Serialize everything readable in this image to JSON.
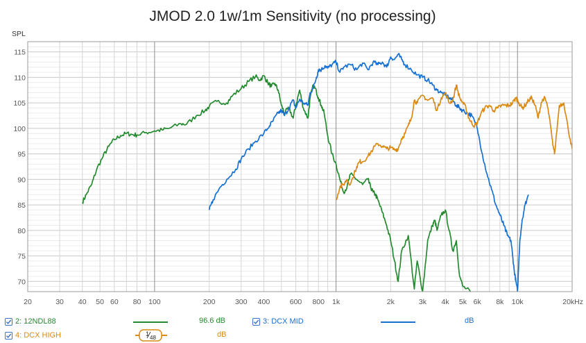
{
  "chart_data": {
    "type": "line",
    "title": "JMOD 2.0 1w/1m Sensitivity (no processing)",
    "ylabel": "SPL",
    "xlabel": "Hz",
    "xscale": "log",
    "xlim": [
      20,
      20000
    ],
    "ylim": [
      68,
      117
    ],
    "grid": true,
    "y_ticks": [
      "115",
      "110",
      "105",
      "100",
      "95",
      "90",
      "85",
      "80",
      "75",
      "70"
    ],
    "x_ticks": [
      "20",
      "30",
      "40",
      "50",
      "60",
      "80",
      "100",
      "200",
      "300",
      "400",
      "600",
      "800",
      "1k",
      "2k",
      "3k",
      "4k",
      "5k",
      "6k",
      "8k",
      "10k",
      "20kHz"
    ],
    "series": [
      {
        "name": "2: 12NDL88",
        "color": "#238a2f",
        "x": [
          40,
          42,
          45,
          48,
          52,
          56,
          60,
          65,
          70,
          75,
          80,
          90,
          100,
          110,
          120,
          140,
          150,
          170,
          190,
          200,
          220,
          250,
          270,
          300,
          330,
          360,
          380,
          400,
          420,
          440,
          460,
          480,
          500,
          520,
          550,
          580,
          600,
          630,
          660,
          700,
          720,
          750,
          780,
          800,
          830,
          860,
          900,
          950,
          1000,
          1050,
          1100,
          1150,
          1200,
          1300,
          1400,
          1500,
          1550,
          1600,
          1650,
          1700,
          1800,
          1900,
          2000,
          2100,
          2200,
          2300,
          2500,
          2700,
          2800,
          3000,
          3200,
          3400,
          3500,
          3600,
          3800,
          4000,
          4200,
          4400,
          4600,
          4800,
          5000,
          5500
        ],
        "values": [
          85.5,
          87,
          89,
          92,
          94.5,
          96.5,
          97.8,
          98.6,
          99,
          98.8,
          98.7,
          99.2,
          99.5,
          99.7,
          100,
          100.9,
          100.8,
          102.5,
          103.5,
          104.3,
          105.3,
          105,
          106.5,
          107.8,
          109.2,
          110.2,
          109.5,
          110.3,
          109,
          108.2,
          108.8,
          107.5,
          104.5,
          103,
          104,
          102,
          104.5,
          107.5,
          104,
          102,
          106,
          108.5,
          107.2,
          106,
          104.5,
          103,
          98.5,
          95,
          93,
          90,
          87.5,
          88.5,
          91,
          90,
          89,
          90,
          88.5,
          87.5,
          87,
          86,
          83.5,
          81,
          78,
          74,
          70,
          76,
          79,
          68.5,
          74,
          68,
          78,
          81,
          82,
          80,
          83,
          84,
          80,
          76,
          78,
          71,
          69,
          68
        ]
      },
      {
        "name": "3: DCX MID",
        "color": "#1670d2",
        "x": [
          200,
          210,
          230,
          250,
          280,
          300,
          330,
          360,
          400,
          430,
          450,
          480,
          500,
          520,
          550,
          580,
          600,
          630,
          660,
          700,
          720,
          750,
          780,
          800,
          830,
          870,
          900,
          950,
          1000,
          1050,
          1100,
          1200,
          1300,
          1400,
          1500,
          1600,
          1700,
          1800,
          1900,
          2000,
          2100,
          2200,
          2300,
          2400,
          2600,
          2800,
          3000,
          3200,
          3400,
          3600,
          3800,
          4000,
          4200,
          4400,
          4600,
          4800,
          5000,
          5300,
          5600,
          6000,
          6400,
          6800,
          7200,
          7600,
          8000,
          8400,
          8800,
          9200,
          9400,
          9600,
          9800,
          10000,
          10300,
          10600,
          11000,
          11500
        ],
        "values": [
          84,
          86,
          88.5,
          90,
          92,
          94,
          96,
          97.5,
          99,
          100.5,
          101.5,
          103,
          103.5,
          102.5,
          104,
          105.5,
          104,
          105.7,
          105,
          104.5,
          107,
          108,
          110,
          111.5,
          111.5,
          112.3,
          111.8,
          112.5,
          113,
          111,
          112,
          112.5,
          111.5,
          112.8,
          111.5,
          113,
          112.5,
          113,
          112,
          114,
          113.5,
          114.5,
          113.5,
          112.5,
          111.5,
          110.5,
          110,
          109.5,
          108.5,
          107.5,
          107,
          106.5,
          106,
          105.5,
          104.5,
          104,
          103.5,
          103,
          102.5,
          100,
          95,
          91,
          88,
          85,
          83,
          81,
          79,
          78,
          75,
          72,
          70,
          68,
          78,
          82,
          85,
          87
        ]
      },
      {
        "name": "4: DCX HIGH",
        "color": "#d98a14",
        "x": [
          1000,
          1050,
          1100,
          1150,
          1200,
          1300,
          1350,
          1400,
          1500,
          1600,
          1700,
          1800,
          1900,
          2000,
          2100,
          2200,
          2300,
          2400,
          2500,
          2600,
          2700,
          2800,
          3000,
          3200,
          3400,
          3600,
          3800,
          4000,
          4200,
          4400,
          4600,
          4800,
          5000,
          5200,
          5400,
          5600,
          5800,
          6000,
          6300,
          6600,
          7000,
          7400,
          7800,
          8200,
          8600,
          9000,
          9400,
          9800,
          10200,
          10600,
          11000,
          11500,
          12000,
          12500,
          13000,
          13500,
          14000,
          14500,
          15000,
          15500,
          16000,
          17000,
          18000,
          19000,
          20000
        ],
        "values": [
          86,
          88.5,
          89,
          90,
          89,
          92.5,
          93.5,
          93.5,
          94.5,
          96,
          97,
          96.5,
          96,
          96.2,
          95.8,
          96,
          98,
          99,
          100.5,
          102,
          105.5,
          105,
          106.5,
          105.5,
          106,
          103.5,
          106,
          107,
          105,
          105.5,
          108.5,
          106,
          105,
          104,
          102,
          101,
          100.5,
          101,
          103,
          104,
          104.5,
          103.5,
          104,
          104.5,
          104.5,
          104.5,
          105,
          106,
          105,
          104,
          104.5,
          105.5,
          106,
          104.5,
          102,
          105,
          106,
          105,
          102,
          98,
          95,
          104.5,
          105,
          100,
          96
        ]
      }
    ]
  },
  "legend": {
    "items": [
      {
        "label": "2: 12NDL88",
        "color": "#238a2f",
        "value": "96.6 dB",
        "checked": true
      },
      {
        "label": "3: DCX MID",
        "color": "#1670d2",
        "value": "dB",
        "checked": true
      },
      {
        "label": "4: DCX HIGH",
        "color": "#d98a14",
        "value": "dB",
        "checked": true
      }
    ],
    "smoothing": {
      "num": "1",
      "den": "48"
    }
  }
}
